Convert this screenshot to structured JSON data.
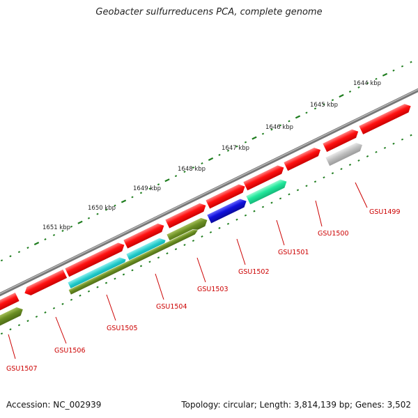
{
  "title": "Geobacter sulfurreducens PCA, complete genome",
  "footer": {
    "accession": "Accession: NC_002939",
    "summary": "Topology: circular; Length: 3,814,139 bp; Genes: 3,502"
  },
  "colors": {
    "backbone": "#808080",
    "tick": "#1e7d1e",
    "gene_label": "#cc0000",
    "forward_cds": "#ff1010",
    "olive": "#6b8e23",
    "cyan": "#1ec8c8",
    "blue": "#1010dd",
    "mint": "#22e89c",
    "gray": "#b8b8b8"
  },
  "scale_labels": [
    "1644 kbp",
    "1645 kbp",
    "1646 kbp",
    "1647 kbp",
    "1648 kbp",
    "1649 kbp",
    "1650 kbp",
    "1651 kbp"
  ],
  "gene_labels": [
    "GSU1499",
    "GSU1500",
    "GSU1501",
    "GSU1502",
    "GSU1503",
    "GSU1504",
    "GSU1505",
    "GSU1506",
    "GSU1507"
  ]
}
